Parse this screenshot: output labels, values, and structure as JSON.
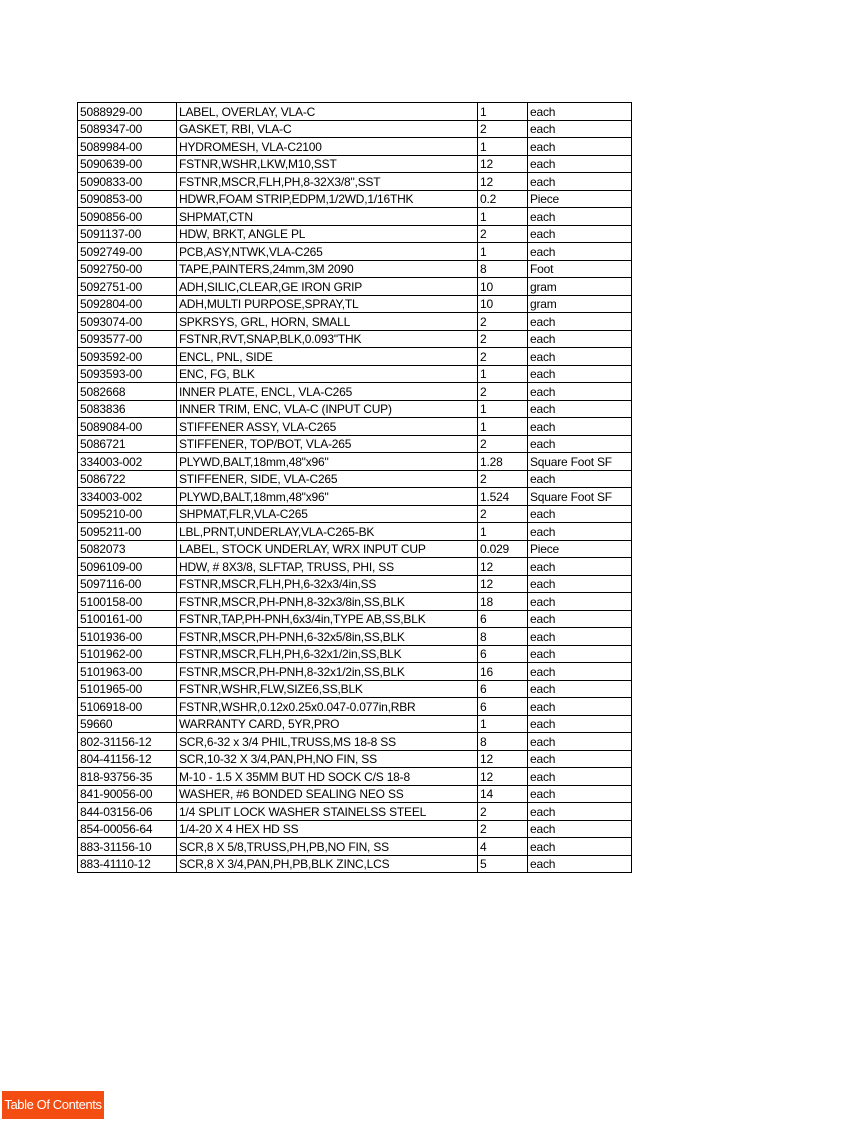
{
  "parts": [
    [
      "5088929-00",
      "LABEL, OVERLAY, VLA-C",
      "1",
      "each"
    ],
    [
      "5089347-00",
      "GASKET, RBI, VLA-C",
      "2",
      "each"
    ],
    [
      "5089984-00",
      "HYDROMESH, VLA-C2100",
      "1",
      "each"
    ],
    [
      "5090639-00",
      "FSTNR,WSHR,LKW,M10,SST",
      "12",
      "each"
    ],
    [
      "5090833-00",
      "FSTNR,MSCR,FLH,PH,8-32X3/8\",SST",
      "12",
      "each"
    ],
    [
      "5090853-00",
      "HDWR,FOAM STRIP,EDPM,1/2WD,1/16THK",
      "0.2",
      "Piece"
    ],
    [
      "5090856-00",
      "SHPMAT,CTN",
      "1",
      "each"
    ],
    [
      "5091137-00",
      "HDW, BRKT, ANGLE PL",
      "2",
      "each"
    ],
    [
      "5092749-00",
      "PCB,ASY,NTWK,VLA-C265",
      "1",
      "each"
    ],
    [
      "5092750-00",
      "TAPE,PAINTERS,24mm,3M 2090",
      "8",
      "Foot"
    ],
    [
      "5092751-00",
      "ADH,SILIC,CLEAR,GE IRON GRIP",
      "10",
      "gram"
    ],
    [
      "5092804-00",
      "ADH,MULTI PURPOSE,SPRAY,TL",
      "10",
      "gram"
    ],
    [
      "5093074-00",
      "SPKRSYS, GRL, HORN, SMALL",
      "2",
      "each"
    ],
    [
      "5093577-00",
      "FSTNR,RVT,SNAP,BLK,0.093\"THK",
      "2",
      "each"
    ],
    [
      "5093592-00",
      "ENCL, PNL, SIDE",
      "2",
      "each"
    ],
    [
      "5093593-00",
      "ENC, FG, BLK",
      "1",
      "each"
    ],
    [
      "5082668",
      "INNER PLATE, ENCL, VLA-C265",
      "2",
      "each"
    ],
    [
      "5083836",
      "INNER TRIM, ENC, VLA-C (INPUT CUP)",
      "1",
      "each"
    ],
    [
      "5089084-00",
      "STIFFENER ASSY, VLA-C265",
      "1",
      "each"
    ],
    [
      "5086721",
      "STIFFENER, TOP/BOT, VLA-265",
      "2",
      "each"
    ],
    [
      "334003-002",
      "PLYWD,BALT,18mm,48\"x96\"",
      "1.28",
      "Square Foot SF"
    ],
    [
      "5086722",
      "STIFFENER, SIDE, VLA-C265",
      "2",
      "each"
    ],
    [
      "334003-002",
      "PLYWD,BALT,18mm,48\"x96\"",
      "1.524",
      "Square Foot SF"
    ],
    [
      "5095210-00",
      "SHPMAT,FLR,VLA-C265",
      "2",
      "each"
    ],
    [
      "5095211-00",
      "LBL,PRNT,UNDERLAY,VLA-C265-BK",
      "1",
      "each"
    ],
    [
      "5082073",
      "LABEL, STOCK UNDERLAY, WRX INPUT CUP",
      "0.029",
      "Piece"
    ],
    [
      "5096109-00",
      "HDW, # 8X3/8, SLFTAP, TRUSS, PHI, SS",
      "12",
      "each"
    ],
    [
      "5097116-00",
      "FSTNR,MSCR,FLH,PH,6-32x3/4in,SS",
      "12",
      "each"
    ],
    [
      "5100158-00",
      "FSTNR,MSCR,PH-PNH,8-32x3/8in,SS,BLK",
      "18",
      "each"
    ],
    [
      "5100161-00",
      "FSTNR,TAP,PH-PNH,6x3/4in,TYPE AB,SS,BLK",
      "6",
      "each"
    ],
    [
      "5101936-00",
      "FSTNR,MSCR,PH-PNH,6-32x5/8in,SS,BLK",
      "8",
      "each"
    ],
    [
      "5101962-00",
      "FSTNR,MSCR,FLH,PH,6-32x1/2in,SS,BLK",
      "6",
      "each"
    ],
    [
      "5101963-00",
      "FSTNR,MSCR,PH-PNH,8-32x1/2in,SS,BLK",
      "16",
      "each"
    ],
    [
      "5101965-00",
      "FSTNR,WSHR,FLW,SIZE6,SS,BLK",
      "6",
      "each"
    ],
    [
      "5106918-00",
      "FSTNR,WSHR,0.12x0.25x0.047-0.077in,RBR",
      "6",
      "each"
    ],
    [
      "59660",
      "WARRANTY CARD, 5YR,PRO",
      "1",
      "each"
    ],
    [
      "802-31156-12",
      "SCR,6-32 x 3/4 PHIL,TRUSS,MS 18-8 SS",
      "8",
      "each"
    ],
    [
      "804-41156-12",
      "SCR,10-32 X 3/4,PAN,PH,NO FIN, SS",
      "12",
      "each"
    ],
    [
      "818-93756-35",
      "M-10 - 1.5 X 35MM BUT HD SOCK C/S 18-8",
      "12",
      "each"
    ],
    [
      "841-90056-00",
      "WASHER, #6 BONDED SEALING NEO SS",
      "14",
      "each"
    ],
    [
      "844-03156-06",
      "1/4 SPLIT LOCK WASHER STAINELSS STEEL",
      "2",
      "each"
    ],
    [
      "854-00056-64",
      "1/4-20 X 4 HEX HD SS",
      "2",
      "each"
    ],
    [
      "883-31156-10",
      "SCR,8 X 5/8,TRUSS,PH,PB,NO FIN, SS",
      "4",
      "each"
    ],
    [
      "883-41110-12",
      "SCR,8 X 3/4,PAN,PH,PB,BLK ZINC,LCS",
      "5",
      "each"
    ]
  ],
  "toc_button": {
    "label": "Table Of Contents",
    "color": "#f44d12"
  }
}
